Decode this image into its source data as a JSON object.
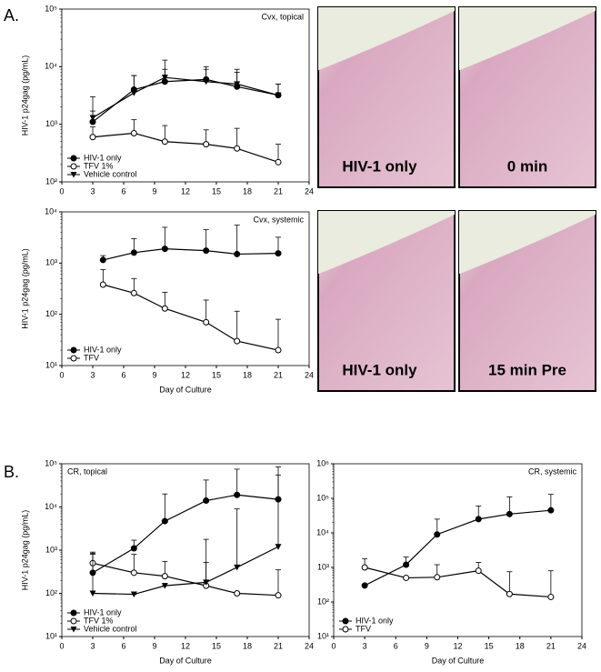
{
  "panels": [
    "A.",
    "B."
  ],
  "micrographs": [
    {
      "label": "HIV-1 only"
    },
    {
      "label": "0 min"
    },
    {
      "label": "HIV-1 only"
    },
    {
      "label": "15 min Pre"
    }
  ],
  "chart_data": [
    {
      "type": "line",
      "title": "Cvx, topical",
      "title_position": "right",
      "y_label": "HIV-1 p24gag (pg/mL)",
      "log_y": true,
      "legend": "lower left",
      "xlim": [
        0,
        24
      ],
      "xticks": [
        0,
        3,
        6,
        9,
        12,
        15,
        18,
        21,
        24
      ],
      "ylim": [
        100,
        100000
      ],
      "yticks": [
        {
          "value": 100,
          "label": "10²"
        },
        {
          "value": 1000,
          "label": "10³"
        },
        {
          "value": 10000,
          "label": "10⁴"
        },
        {
          "value": 100000,
          "label": "10⁵"
        }
      ],
      "x": [
        3,
        7,
        10,
        14,
        17,
        21
      ],
      "series": [
        {
          "name": "HIV-1 only",
          "color": "#000000",
          "marker": "filled-circle",
          "values": [
            1100,
            4000,
            5500,
            6000,
            4500,
            3200
          ],
          "errors": [
            1900,
            3000,
            3500,
            4000,
            3500,
            1800
          ]
        },
        {
          "name": "TFV 1%",
          "color": "#000000",
          "marker": "open-circle",
          "values": [
            600,
            700,
            500,
            450,
            380,
            220
          ],
          "errors": [
            300,
            500,
            450,
            350,
            470,
            230
          ]
        },
        {
          "name": "Vehicle control",
          "color": "#000000",
          "marker": "triangle",
          "values": [
            1300,
            3500,
            6500,
            5500,
            5000,
            3200
          ],
          "errors": [
            400,
            3500,
            6500,
            3500,
            4000,
            1800
          ]
        }
      ]
    },
    {
      "type": "line",
      "title": "Cvx, systemic",
      "title_position": "right",
      "y_label": "HIV-1 p24gag (pg/mL)",
      "x_label": "Day of Culture",
      "log_y": true,
      "legend": "lower left",
      "xlim": [
        0,
        24
      ],
      "xticks": [
        0,
        3,
        6,
        9,
        12,
        15,
        18,
        21,
        24
      ],
      "ylim": [
        10,
        10000
      ],
      "yticks": [
        {
          "value": 10,
          "label": "10¹"
        },
        {
          "value": 100,
          "label": "10²"
        },
        {
          "value": 1000,
          "label": "10³"
        },
        {
          "value": 10000,
          "label": "10⁴"
        }
      ],
      "x": [
        4,
        7,
        10,
        14,
        17,
        21
      ],
      "series": [
        {
          "name": "HIV-1 only",
          "color": "#000000",
          "marker": "filled-circle",
          "values": [
            1150,
            1600,
            1900,
            1750,
            1500,
            1550
          ],
          "errors": [
            250,
            1400,
            3100,
            2750,
            4000,
            1650
          ]
        },
        {
          "name": "TFV",
          "color": "#000000",
          "marker": "open-circle",
          "values": [
            380,
            260,
            130,
            70,
            30,
            20
          ],
          "errors": [
            370,
            240,
            140,
            120,
            85,
            60
          ]
        }
      ]
    },
    {
      "type": "line",
      "title": "CR, topical",
      "title_position": "left",
      "y_label": "HIV-1 p24gag (pg/mL)",
      "x_label": "Day of Culture",
      "log_y": true,
      "legend": "lower left",
      "xlim": [
        0,
        24
      ],
      "xticks": [
        0,
        3,
        6,
        9,
        12,
        15,
        18,
        21,
        24
      ],
      "ylim": [
        10,
        100000
      ],
      "yticks": [
        {
          "value": 10,
          "label": "10¹"
        },
        {
          "value": 100,
          "label": "10²"
        },
        {
          "value": 1000,
          "label": "10³"
        },
        {
          "value": 10000,
          "label": "10⁴"
        },
        {
          "value": 100000,
          "label": "10⁵"
        }
      ],
      "x": [
        3,
        7,
        10,
        14,
        17,
        21
      ],
      "series": [
        {
          "name": "HIV-1 only",
          "color": "#000000",
          "marker": "filled-circle",
          "values": [
            300,
            1100,
            4700,
            14000,
            19000,
            15000
          ],
          "errors": [
            500,
            600,
            15300,
            28000,
            56000,
            70000
          ]
        },
        {
          "name": "TFV 1%",
          "color": "#000000",
          "marker": "open-circle",
          "values": [
            500,
            300,
            250,
            150,
            100,
            90
          ],
          "errors": [
            400,
            500,
            300,
            370,
            0,
            260
          ]
        },
        {
          "name": "Vehicle control",
          "color": "#000000",
          "marker": "triangle",
          "values": [
            100,
            95,
            150,
            180,
            400,
            1200
          ],
          "errors": [
            750,
            0,
            0,
            1600,
            8600,
            53800
          ]
        }
      ]
    },
    {
      "type": "line",
      "title": "CR, systemic",
      "title_position": "right",
      "x_label": "Day of Culture",
      "log_y": true,
      "legend": "lower left",
      "xlim": [
        0,
        24
      ],
      "xticks": [
        0,
        3,
        6,
        9,
        12,
        15,
        18,
        21,
        24
      ],
      "ylim": [
        10,
        1000000
      ],
      "yticks": [
        {
          "value": 10,
          "label": "10¹"
        },
        {
          "value": 100,
          "label": "10²"
        },
        {
          "value": 1000,
          "label": "10³"
        },
        {
          "value": 10000,
          "label": "10⁴"
        },
        {
          "value": 100000,
          "label": "10⁵"
        },
        {
          "value": 1000000,
          "label": "10⁶"
        }
      ],
      "x": [
        3,
        7,
        10,
        14,
        17,
        21
      ],
      "series": [
        {
          "name": "HIV-1 only",
          "color": "#000000",
          "marker": "filled-circle",
          "values": [
            300,
            1200,
            9000,
            25000,
            35000,
            45000
          ],
          "errors": [
            0,
            800,
            16000,
            35000,
            75000,
            85000
          ]
        },
        {
          "name": "TFV",
          "color": "#000000",
          "marker": "open-circle",
          "values": [
            1000,
            500,
            520,
            800,
            170,
            140
          ],
          "errors": [
            800,
            0,
            680,
            600,
            580,
            660
          ]
        }
      ]
    }
  ]
}
